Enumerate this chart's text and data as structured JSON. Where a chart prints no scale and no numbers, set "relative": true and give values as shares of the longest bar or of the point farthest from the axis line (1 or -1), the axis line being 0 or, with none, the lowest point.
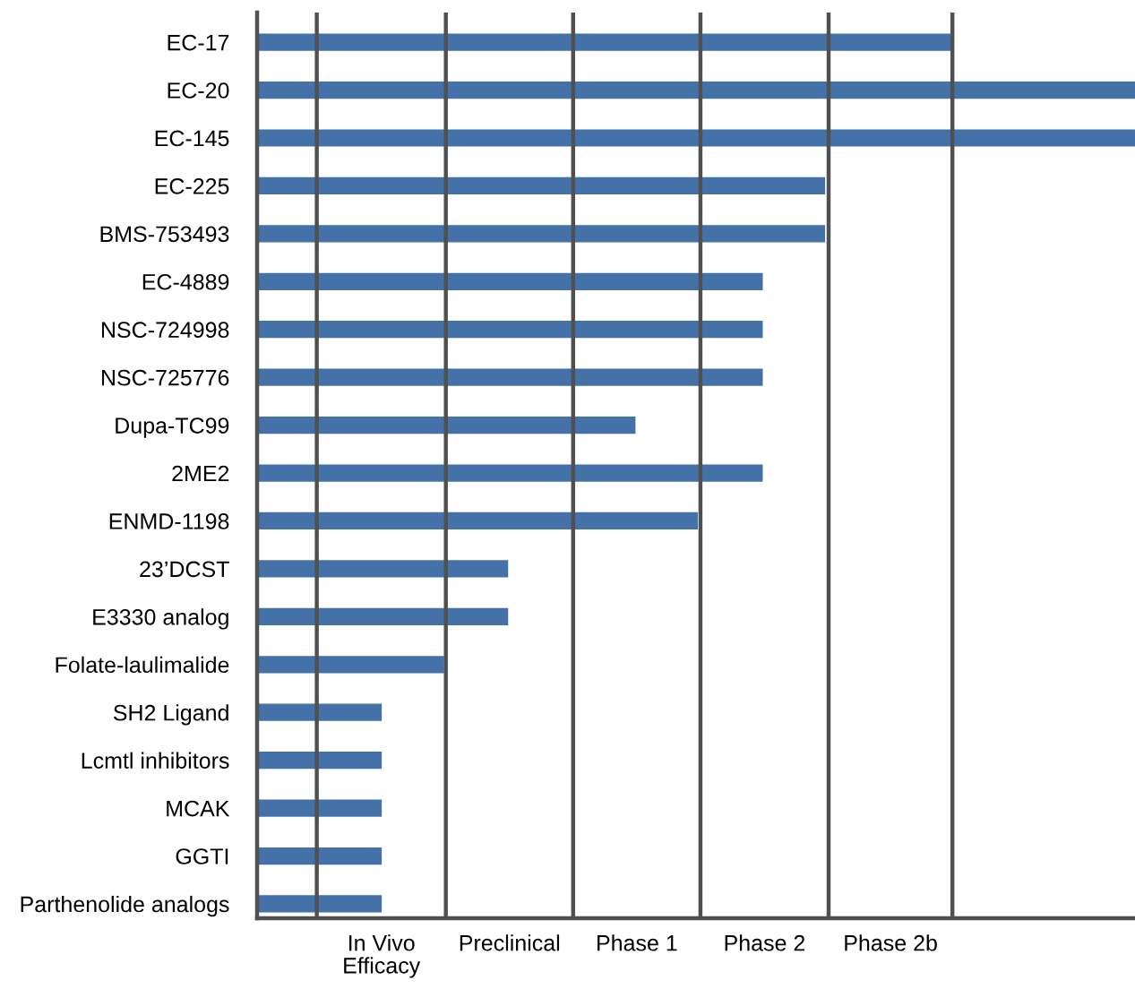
{
  "chart_data": {
    "type": "bar",
    "orientation": "horizontal",
    "relative": true,
    "color": "#4472a8",
    "categories": [
      "EC-17",
      "EC-20",
      "EC-145",
      "EC-225",
      "BMS-753493",
      "EC-4889",
      "NSC-724998",
      "NSC-725776",
      "Dupa-TC99",
      "2ME2",
      "ENMD-1198",
      "23’DCST",
      "E3330 analog",
      "Folate-laulimalide",
      "SH2 Ligand",
      "Lcmtl inhibitors",
      "MCAK",
      "GGTI",
      "Parthenolide analogs"
    ],
    "values": [
      0.79,
      1.0,
      1.0,
      0.647,
      0.647,
      0.576,
      0.576,
      0.576,
      0.431,
      0.576,
      0.502,
      0.286,
      0.286,
      0.213,
      0.142,
      0.142,
      0.142,
      0.142,
      0.142
    ],
    "ref_lines": [
      {
        "axis": "x",
        "value": 0.068,
        "color": "#505050"
      },
      {
        "axis": "x",
        "value": 0.215,
        "color": "#505050"
      },
      {
        "axis": "x",
        "value": 0.36,
        "color": "#505050"
      },
      {
        "axis": "x",
        "value": 0.505,
        "color": "#505050"
      },
      {
        "axis": "x",
        "value": 0.651,
        "color": "#505050"
      },
      {
        "axis": "x",
        "value": 0.792,
        "color": "#505050"
      }
    ],
    "annotations": [
      "In Vivo\nEfficacy",
      "Preclinical",
      "Phase 1",
      "Phase 2",
      "Phase 2b"
    ],
    "grid": false,
    "legend": false
  }
}
